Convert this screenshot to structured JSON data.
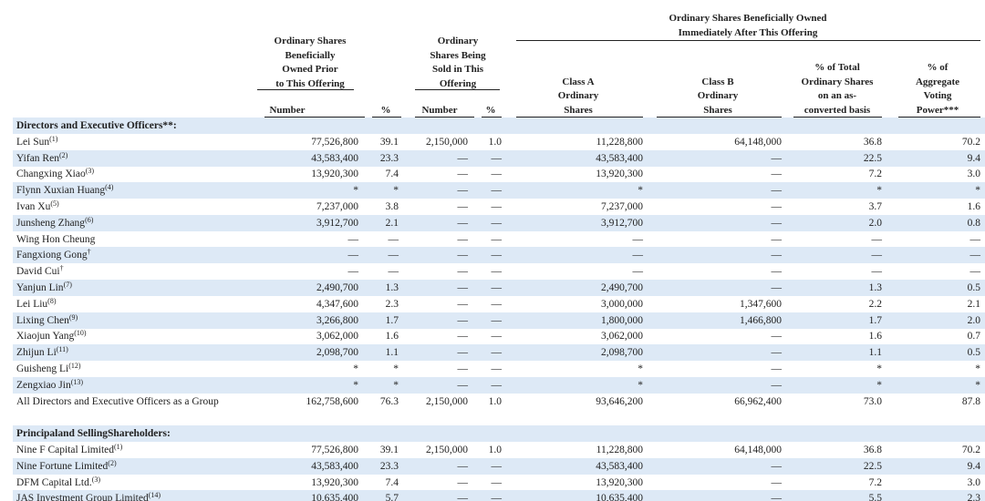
{
  "header": {
    "group_after": [
      "Ordinary Shares Beneficially Owned",
      "Immediately After This Offering"
    ],
    "columns": [
      [
        "Ordinary Shares",
        "Beneficially",
        "Owned Prior",
        "to This Offering"
      ],
      [
        "Ordinary",
        "Shares Being",
        "Sold in This",
        "Offering"
      ],
      [
        "Class A",
        "Ordinary",
        "Shares"
      ],
      [
        "Class B",
        "Ordinary",
        "Shares"
      ],
      [
        "% of Total",
        "Ordinary Shares",
        "on an as-",
        "converted basis"
      ],
      [
        "% of",
        "Aggregate",
        "Voting",
        "Power***"
      ]
    ],
    "subheaders": [
      "Number",
      "%",
      "Number",
      "%"
    ]
  },
  "sections": [
    {
      "title": "Directors and Executive Officers**:",
      "rows": [
        {
          "name": "Lei Sun",
          "note": "(1)",
          "cells": [
            "77,526,800",
            "39.1",
            "2,150,000",
            "1.0",
            "11,228,800",
            "64,148,000",
            "36.8",
            "70.2"
          ]
        },
        {
          "name": "Yifan Ren",
          "note": "(2)",
          "cells": [
            "43,583,400",
            "23.3",
            "—",
            "—",
            "43,583,400",
            "—",
            "22.5",
            "9.4"
          ]
        },
        {
          "name": "Changxing Xiao",
          "note": "(3)",
          "cells": [
            "13,920,300",
            "7.4",
            "—",
            "—",
            "13,920,300",
            "—",
            "7.2",
            "3.0"
          ]
        },
        {
          "name": "Flynn Xuxian Huang",
          "note": "(4)",
          "cells": [
            "*",
            "*",
            "—",
            "—",
            "*",
            "—",
            "*",
            "*"
          ]
        },
        {
          "name": "Ivan Xu",
          "note": "(5)",
          "cells": [
            "7,237,000",
            "3.8",
            "—",
            "—",
            "7,237,000",
            "—",
            "3.7",
            "1.6"
          ]
        },
        {
          "name": "Junsheng Zhang",
          "note": "(6)",
          "cells": [
            "3,912,700",
            "2.1",
            "—",
            "—",
            "3,912,700",
            "—",
            "2.0",
            "0.8"
          ]
        },
        {
          "name": "Wing Hon Cheung",
          "cells": [
            "—",
            "—",
            "—",
            "—",
            "—",
            "—",
            "—",
            "—"
          ]
        },
        {
          "name": "Fangxiong Gong",
          "note": "†",
          "cells": [
            "—",
            "—",
            "—",
            "—",
            "—",
            "—",
            "—",
            "—"
          ]
        },
        {
          "name": "David Cui",
          "note": "†",
          "cells": [
            "—",
            "—",
            "—",
            "—",
            "—",
            "—",
            "—",
            "—"
          ]
        },
        {
          "name": "Yanjun Lin",
          "note": "(7)",
          "cells": [
            "2,490,700",
            "1.3",
            "—",
            "—",
            "2,490,700",
            "—",
            "1.3",
            "0.5"
          ]
        },
        {
          "name": "Lei Liu",
          "note": "(8)",
          "cells": [
            "4,347,600",
            "2.3",
            "—",
            "—",
            "3,000,000",
            "1,347,600",
            "2.2",
            "2.1"
          ]
        },
        {
          "name": "Lixing Chen",
          "note": "(9)",
          "cells": [
            "3,266,800",
            "1.7",
            "—",
            "—",
            "1,800,000",
            "1,466,800",
            "1.7",
            "2.0"
          ]
        },
        {
          "name": "Xiaojun Yang",
          "note": "(10)",
          "cells": [
            "3,062,000",
            "1.6",
            "—",
            "—",
            "3,062,000",
            "—",
            "1.6",
            "0.7"
          ]
        },
        {
          "name": "Zhijun Li",
          "note": "(11)",
          "cells": [
            "2,098,700",
            "1.1",
            "—",
            "—",
            "2,098,700",
            "—",
            "1.1",
            "0.5"
          ]
        },
        {
          "name": "Guisheng Li",
          "note": "(12)",
          "cells": [
            "*",
            "*",
            "—",
            "—",
            "*",
            "—",
            "*",
            "*"
          ]
        },
        {
          "name": "Zengxiao Jin",
          "note": "(13)",
          "cells": [
            "*",
            "*",
            "—",
            "—",
            "*",
            "—",
            "*",
            "*"
          ]
        },
        {
          "name": "All Directors and Executive Officers as a Group",
          "cells": [
            "162,758,600",
            "76.3",
            "2,150,000",
            "1.0",
            "93,646,200",
            "66,962,400",
            "73.0",
            "87.8"
          ]
        }
      ]
    },
    {
      "title": "Principaland SellingShareholders:",
      "rows": [
        {
          "name": "Nine F Capital Limited",
          "note": "(1)",
          "cells": [
            "77,526,800",
            "39.1",
            "2,150,000",
            "1.0",
            "11,228,800",
            "64,148,000",
            "36.8",
            "70.2"
          ]
        },
        {
          "name": "Nine Fortune Limited",
          "note": "(2)",
          "cells": [
            "43,583,400",
            "23.3",
            "—",
            "—",
            "43,583,400",
            "—",
            "22.5",
            "9.4"
          ]
        },
        {
          "name": "DFM Capital Ltd.",
          "note": "(3)",
          "cells": [
            "13,920,300",
            "7.4",
            "—",
            "—",
            "13,920,300",
            "—",
            "7.2",
            "3.0"
          ]
        },
        {
          "name": "JAS Investment Group Limited",
          "note": "(14)",
          "cells": [
            "10,635,400",
            "5.7",
            "—",
            "—",
            "10,635,400",
            "—",
            "5.5",
            "2.3"
          ]
        }
      ]
    }
  ]
}
